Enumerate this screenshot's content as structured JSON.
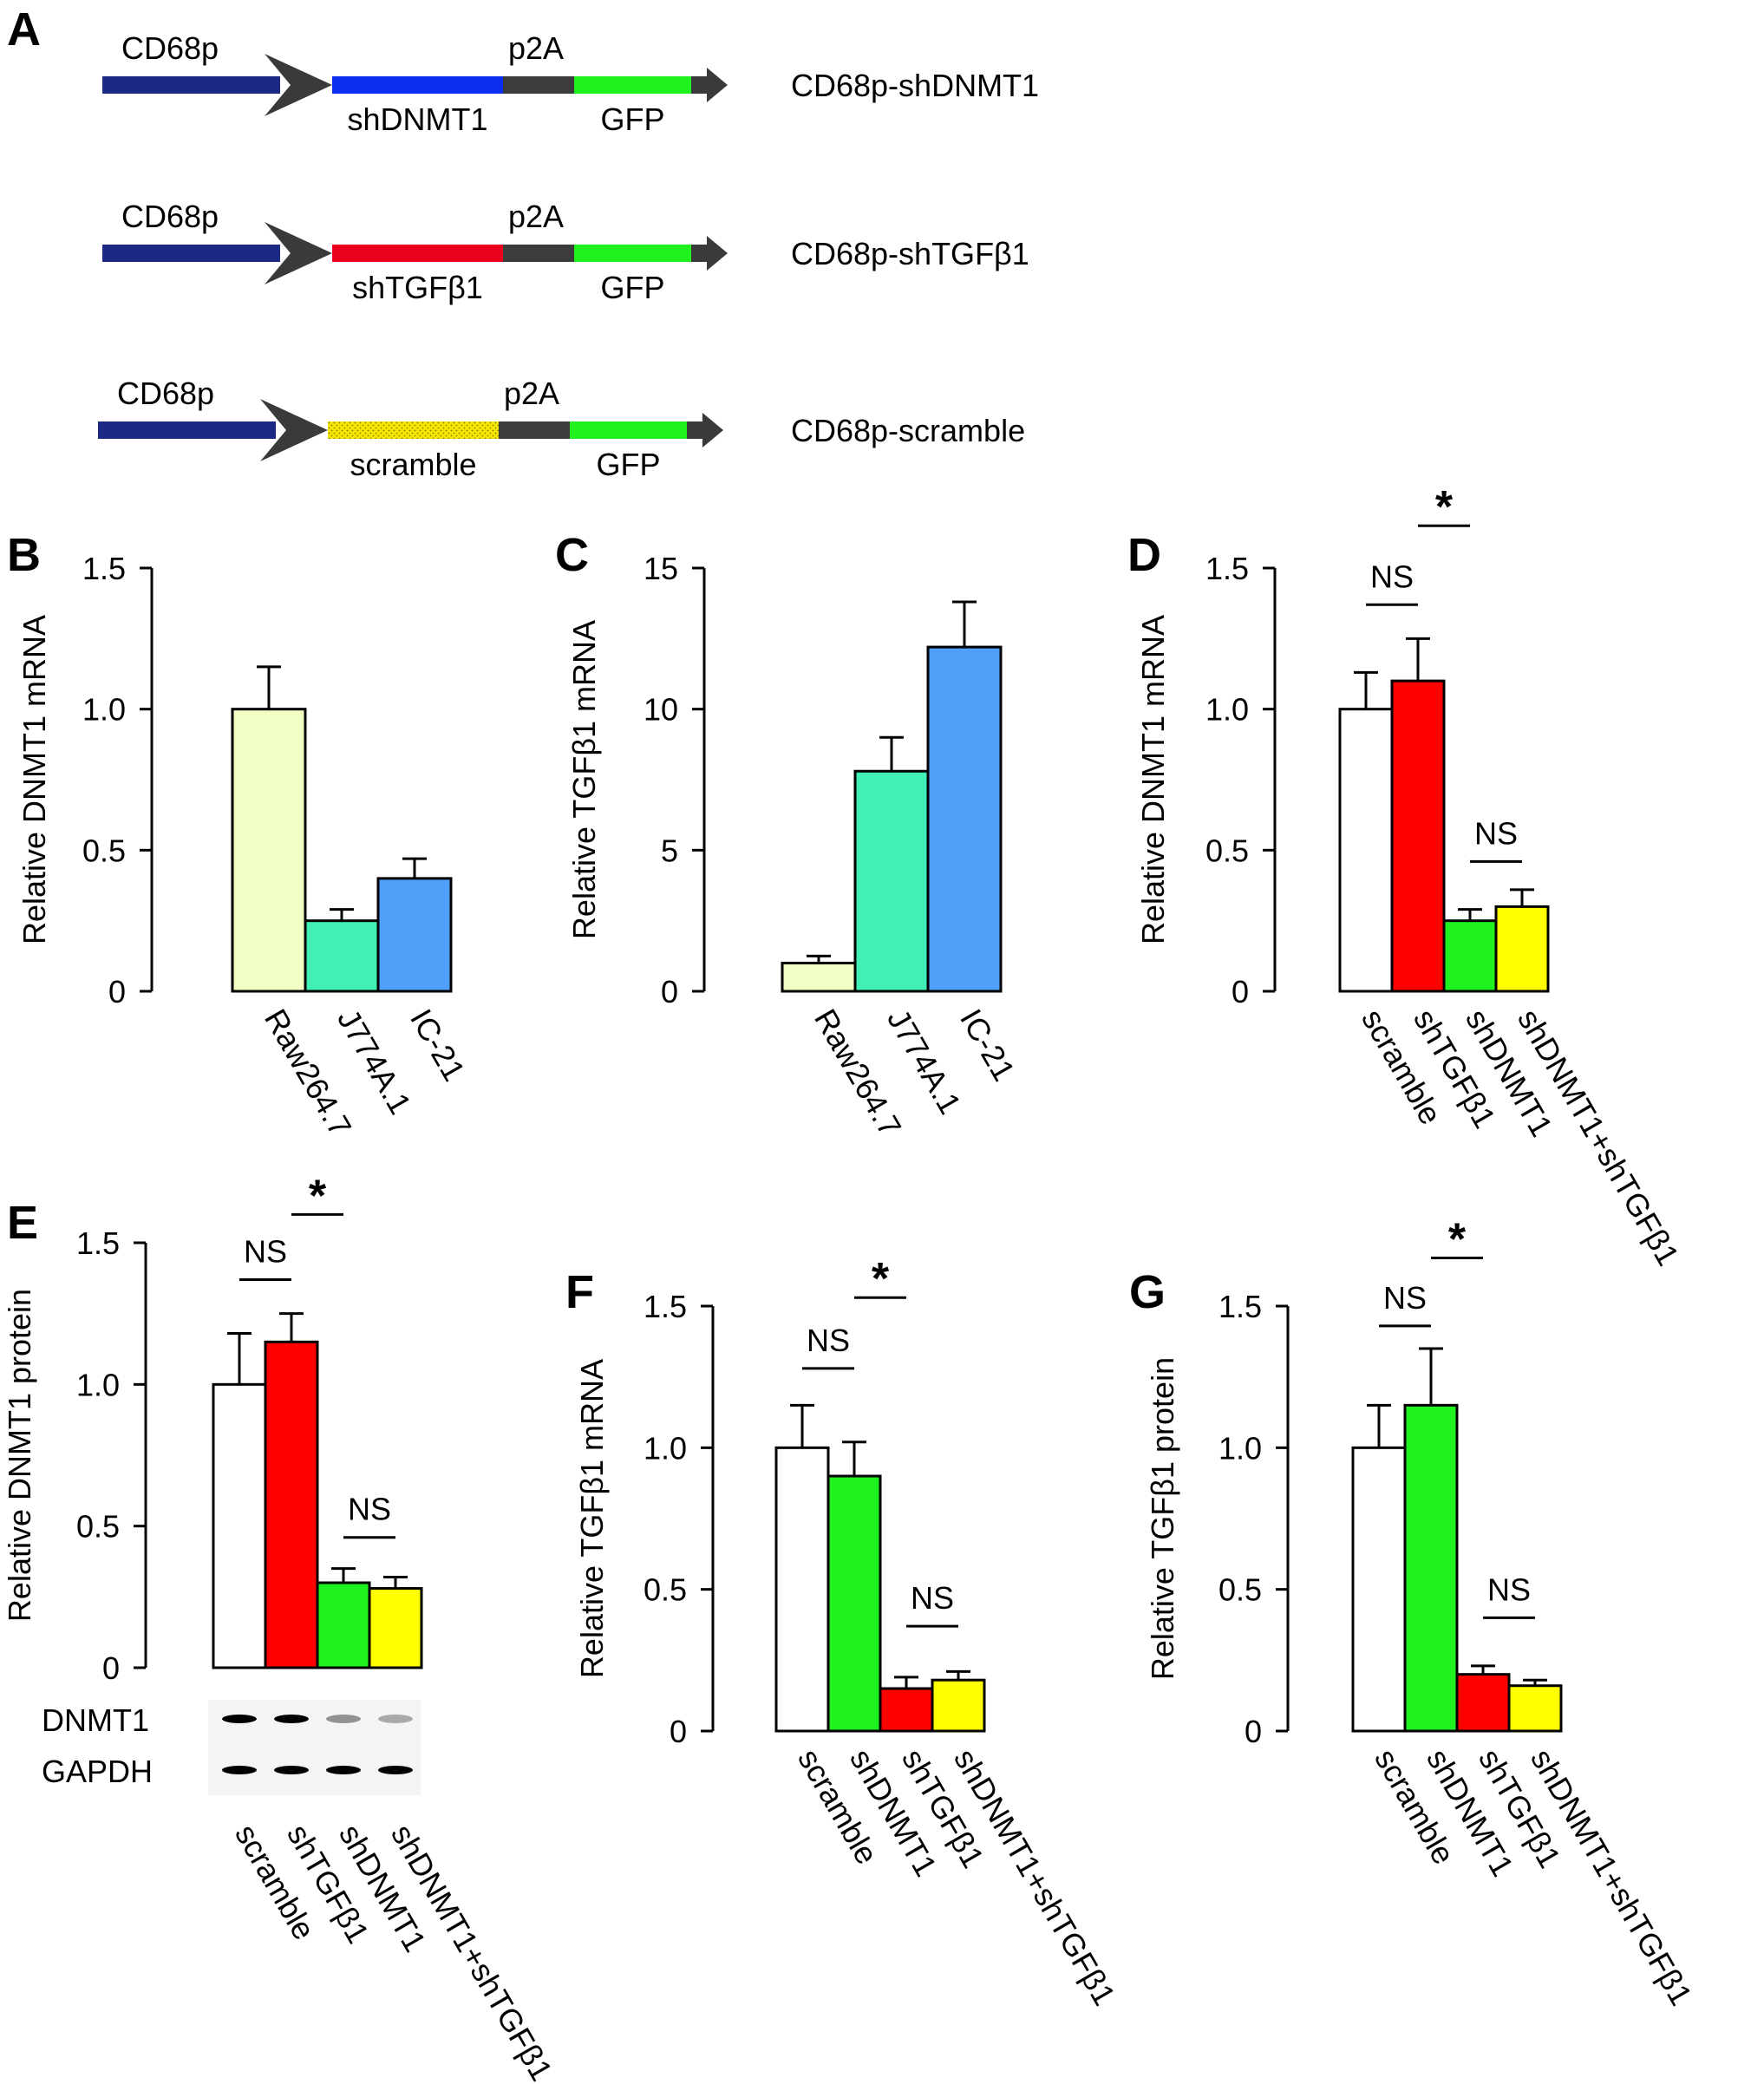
{
  "panels": {
    "A": "A",
    "B": "B",
    "C": "C",
    "D": "D",
    "E": "E",
    "F": "F",
    "G": "G"
  },
  "constructs": [
    {
      "name": "CD68p-shDNMT1",
      "promoter": "CD68p",
      "insert": "shDNMT1",
      "linker": "p2A",
      "reporter": "GFP",
      "insert_color": "#0a2ff0",
      "pattern": false
    },
    {
      "name": "CD68p-shTGFβ1",
      "promoter": "CD68p",
      "insert": "shTGFβ1",
      "linker": "p2A",
      "reporter": "GFP",
      "insert_color": "#e8001c",
      "pattern": false
    },
    {
      "name": "CD68p-scramble",
      "promoter": "CD68p",
      "insert": "scramble",
      "linker": "p2A",
      "reporter": "GFP",
      "insert_color": "#f5e600",
      "pattern": true
    }
  ],
  "construct_colors": {
    "promoter": "#1c2a86",
    "linker": "#3c3c3c",
    "reporter": "#1ff21f",
    "arrow": "#3a3a3a"
  },
  "blot": {
    "labels": [
      "DNMT1",
      "GAPDH"
    ],
    "intensity": {
      "DNMT1": [
        1.0,
        1.0,
        0.4,
        0.3
      ],
      "GAPDH": [
        1.0,
        1.0,
        1.0,
        1.0
      ]
    }
  },
  "chart_data": [
    {
      "panel": "B",
      "type": "bar",
      "ylabel": "Relative DNMT1 mRNA",
      "yticks": [
        "0",
        "0.5",
        "1.0",
        "1.5"
      ],
      "ylim": [
        0,
        1.5
      ],
      "categories": [
        "Raw264.7",
        "J774A.1",
        "IC-21"
      ],
      "values": [
        1.0,
        0.25,
        0.4
      ],
      "errors": [
        0.15,
        0.04,
        0.07
      ],
      "colors": [
        "#f2ffc4",
        "#40f0b4",
        "#50a0fa"
      ],
      "annotations": []
    },
    {
      "panel": "C",
      "type": "bar",
      "ylabel": "Relative TGFβ1 mRNA",
      "yticks": [
        "0",
        "5",
        "10",
        "15"
      ],
      "ylim": [
        0,
        15
      ],
      "categories": [
        "Raw264.7",
        "J774A.1",
        "IC-21"
      ],
      "values": [
        1.0,
        7.8,
        12.2
      ],
      "errors": [
        0.25,
        1.2,
        1.6
      ],
      "colors": [
        "#f2ffc4",
        "#40f0b4",
        "#50a0fa"
      ],
      "annotations": []
    },
    {
      "panel": "D",
      "type": "bar",
      "ylabel": "Relative DNMT1 mRNA",
      "yticks": [
        "0",
        "0.5",
        "1.0",
        "1.5"
      ],
      "ylim": [
        0,
        1.5
      ],
      "categories": [
        "scramble",
        "shTGFβ1",
        "shDNMT1",
        "shDNMT1+shTGFβ1"
      ],
      "values": [
        1.0,
        1.1,
        0.25,
        0.3
      ],
      "errors": [
        0.13,
        0.15,
        0.04,
        0.06
      ],
      "colors": [
        "#ffffff",
        "#ff0000",
        "#1ff21f",
        "#ffff00"
      ],
      "annotations": [
        {
          "text": "NS",
          "from": 0,
          "to": 1,
          "y": 1.37,
          "star": false
        },
        {
          "text": "NS",
          "from": 2,
          "to": 3,
          "y": 0.46,
          "star": false
        },
        {
          "text": "*",
          "from": 1,
          "to": 2,
          "y": 1.65,
          "star": true
        }
      ]
    },
    {
      "panel": "E",
      "type": "bar",
      "ylabel": "Relative DNMT1 protein",
      "yticks": [
        "0",
        "0.5",
        "1.0",
        "1.5"
      ],
      "ylim": [
        0,
        1.5
      ],
      "categories": [
        "scramble",
        "shTGFβ1",
        "shDNMT1",
        "shDNMT1+shTGFβ1"
      ],
      "values": [
        1.0,
        1.15,
        0.3,
        0.28
      ],
      "errors": [
        0.18,
        0.1,
        0.05,
        0.04
      ],
      "colors": [
        "#ffffff",
        "#ff0000",
        "#1ff21f",
        "#ffff00"
      ],
      "annotations": [
        {
          "text": "NS",
          "from": 0,
          "to": 1,
          "y": 1.37,
          "star": false
        },
        {
          "text": "NS",
          "from": 2,
          "to": 3,
          "y": 0.46,
          "star": false
        },
        {
          "text": "*",
          "from": 1,
          "to": 2,
          "y": 1.6,
          "star": true
        }
      ]
    },
    {
      "panel": "F",
      "type": "bar",
      "ylabel": "Relative  TGFβ1 mRNA",
      "yticks": [
        "0",
        "0.5",
        "1.0",
        "1.5"
      ],
      "ylim": [
        0,
        1.5
      ],
      "categories": [
        "scramble",
        "shDNMT1",
        "shTGFβ1",
        "shDNMT1+shTGFβ1"
      ],
      "values": [
        1.0,
        0.9,
        0.15,
        0.18
      ],
      "errors": [
        0.15,
        0.12,
        0.04,
        0.03
      ],
      "colors": [
        "#ffffff",
        "#1ff21f",
        "#ff0000",
        "#ffff00"
      ],
      "annotations": [
        {
          "text": "NS",
          "from": 0,
          "to": 1,
          "y": 1.28,
          "star": false
        },
        {
          "text": "NS",
          "from": 2,
          "to": 3,
          "y": 0.37,
          "star": false
        },
        {
          "text": "*",
          "from": 1,
          "to": 2,
          "y": 1.53,
          "star": true
        }
      ]
    },
    {
      "panel": "G",
      "type": "bar",
      "ylabel": "Relative  TGFβ1 protein",
      "yticks": [
        "0",
        "0.5",
        "1.0",
        "1.5"
      ],
      "ylim": [
        0,
        1.5
      ],
      "categories": [
        "scramble",
        "shDNMT1",
        "shTGFβ1",
        "shDNMT1+shTGFβ1"
      ],
      "values": [
        1.0,
        1.15,
        0.2,
        0.16
      ],
      "errors": [
        0.15,
        0.2,
        0.03,
        0.02
      ],
      "colors": [
        "#ffffff",
        "#1ff21f",
        "#ff0000",
        "#ffff00"
      ],
      "annotations": [
        {
          "text": "NS",
          "from": 0,
          "to": 1,
          "y": 1.43,
          "star": false
        },
        {
          "text": "NS",
          "from": 2,
          "to": 3,
          "y": 0.4,
          "star": false
        },
        {
          "text": "*",
          "from": 1,
          "to": 2,
          "y": 1.67,
          "star": true
        }
      ]
    }
  ]
}
